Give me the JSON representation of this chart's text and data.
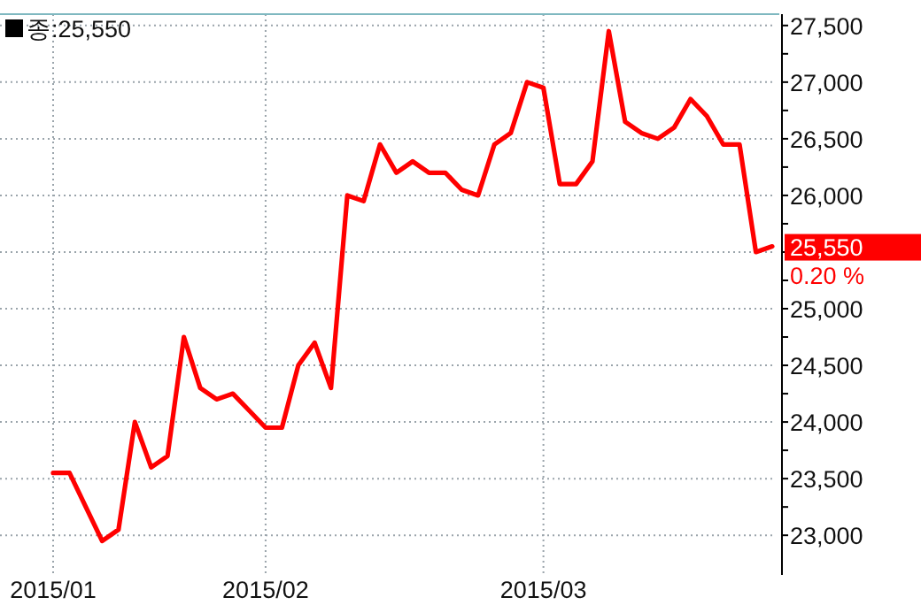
{
  "chart_data": {
    "type": "line",
    "categories": [
      "2015/01",
      null,
      null,
      null,
      null,
      null,
      null,
      null,
      null,
      null,
      null,
      null,
      null,
      "2015/02",
      null,
      null,
      null,
      null,
      null,
      null,
      null,
      null,
      null,
      null,
      null,
      null,
      null,
      null,
      null,
      null,
      "2015/03",
      null,
      null,
      null,
      null,
      null,
      null,
      null,
      null,
      null,
      null,
      null,
      null,
      null,
      null
    ],
    "series": [
      {
        "color": "#ff0000",
        "values": [
          23550,
          23550,
          23250,
          22950,
          23050,
          24000,
          23600,
          23700,
          24750,
          24300,
          24200,
          24250,
          24100,
          23950,
          23950,
          24500,
          24700,
          24300,
          26000,
          25950,
          26450,
          26200,
          26300,
          26200,
          26200,
          26050,
          26000,
          26450,
          26550,
          27000,
          26950,
          26100,
          26100,
          26300,
          27450,
          26650,
          26550,
          26500,
          26600,
          26850,
          26700,
          26450,
          26450,
          25500,
          25550
        ]
      }
    ],
    "ylim": [
      22650,
      27600
    ],
    "yticks": [
      {
        "value": 23000,
        "label": "23,000"
      },
      {
        "value": 23500,
        "label": "23,500"
      },
      {
        "value": 24000,
        "label": "24,000"
      },
      {
        "value": 24500,
        "label": "24,500"
      },
      {
        "value": 25000,
        "label": "25,000"
      },
      {
        "value": 25500,
        "label": null
      },
      {
        "value": 26000,
        "label": "26,000"
      },
      {
        "value": 26500,
        "label": "26,500"
      },
      {
        "value": 27000,
        "label": "27,000"
      },
      {
        "value": 27500,
        "label": "27,500"
      }
    ],
    "grid": true,
    "annotations": [
      "종:25,550",
      "25,550",
      "0.20 %"
    ]
  }
}
